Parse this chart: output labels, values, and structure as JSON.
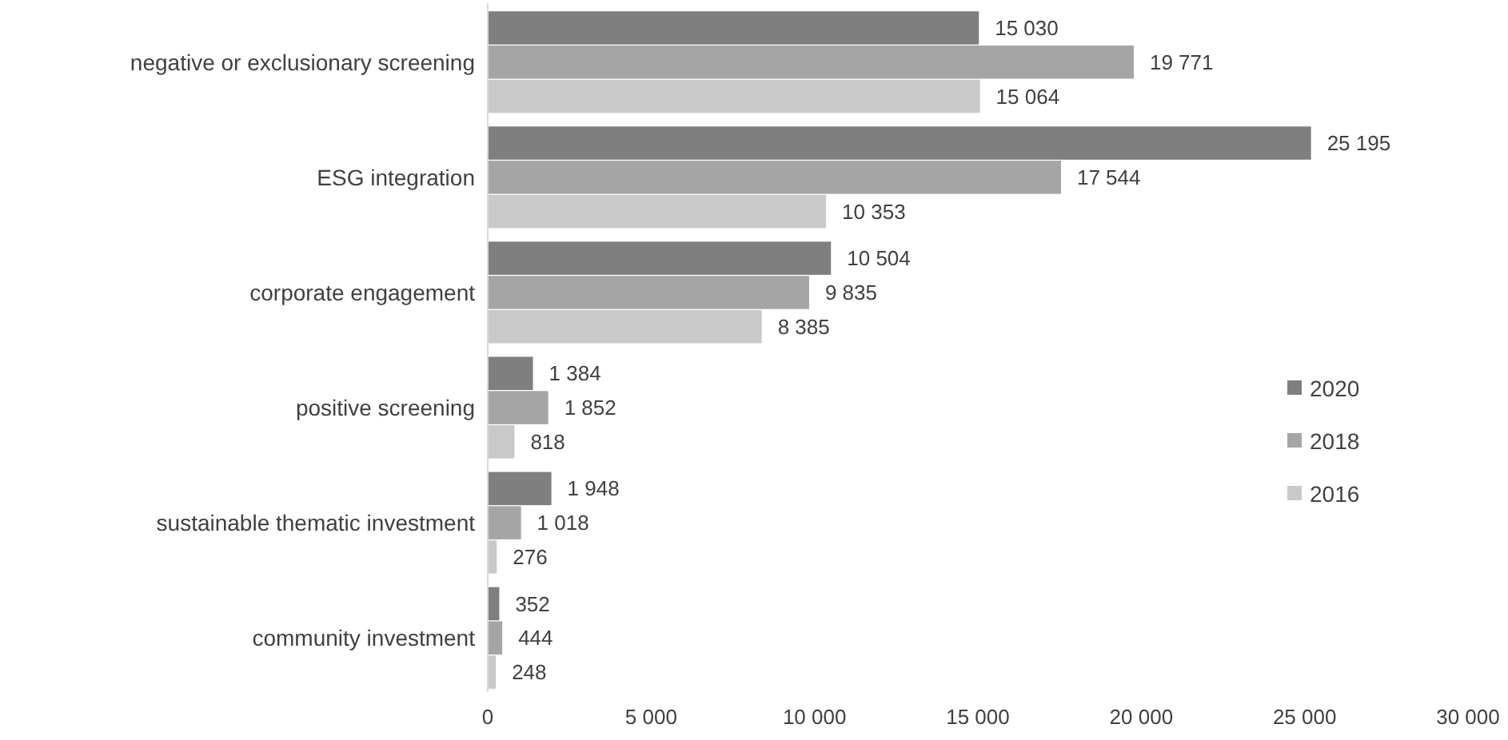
{
  "chart_data": {
    "type": "bar",
    "orientation": "horizontal",
    "categories": [
      "negative or exclusionary screening",
      "ESG integration",
      "corporate engagement",
      "positive screening",
      "sustainable thematic investment",
      "community investment"
    ],
    "series": [
      {
        "name": "2020",
        "color": "#7f7f7f",
        "values": [
          15030,
          25195,
          10504,
          1384,
          1948,
          352
        ],
        "value_labels": [
          "15 030",
          "25 195",
          "10 504",
          "1 384",
          "1 948",
          "352"
        ]
      },
      {
        "name": "2018",
        "color": "#a5a5a5",
        "values": [
          19771,
          17544,
          9835,
          1852,
          1018,
          444
        ],
        "value_labels": [
          "19 771",
          "17 544",
          "9 835",
          "1 852",
          "1 018",
          "444"
        ]
      },
      {
        "name": "2016",
        "color": "#c9c9c9",
        "values": [
          15064,
          10353,
          8385,
          818,
          276,
          248
        ],
        "value_labels": [
          "15 064",
          "10 353",
          "8 385",
          "818",
          "276",
          "248"
        ]
      }
    ],
    "xlim": [
      0,
      30000
    ],
    "xticks": [
      0,
      {
        "value": 5000,
        "label": "5 000"
      },
      {
        "value": 10000,
        "label": "10 000"
      },
      {
        "value": 15000,
        "label": "15 000"
      },
      {
        "value": 20000,
        "label": "20 000"
      },
      {
        "value": 25000,
        "label": "25 000"
      },
      {
        "value": 30000,
        "label": "30 000"
      }
    ],
    "grid": false,
    "legend": "right"
  }
}
